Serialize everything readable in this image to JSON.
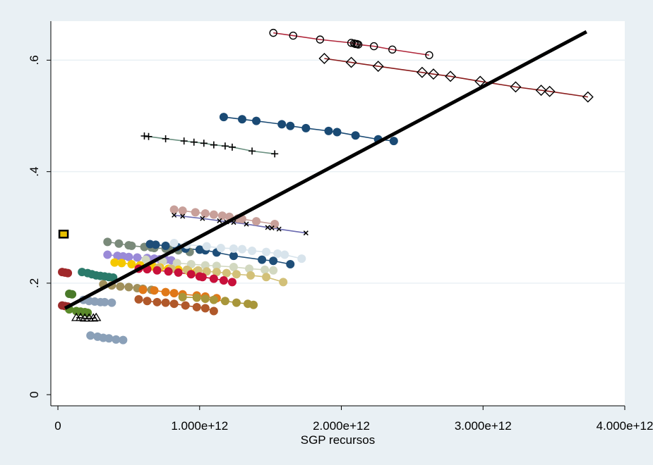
{
  "chart_data": {
    "type": "scatter",
    "title": "",
    "xlabel": "SGP recursos",
    "ylabel": "",
    "xlim": [
      -50000000000.0,
      4000000000000.0
    ],
    "ylim": [
      -0.02,
      0.67
    ],
    "x_ticks": [
      {
        "value": 0,
        "label": "0"
      },
      {
        "value": 1000000000000.0,
        "label": "1.000e+12"
      },
      {
        "value": 2000000000000.0,
        "label": "2.000e+12"
      },
      {
        "value": 3000000000000.0,
        "label": "3.000e+12"
      },
      {
        "value": 4000000000000.0,
        "label": "4.000e+12"
      }
    ],
    "y_ticks": [
      {
        "value": 0,
        "label": "0"
      },
      {
        "value": 0.2,
        "label": ".2"
      },
      {
        "value": 0.4,
        "label": ".4"
      },
      {
        "value": 0.6,
        "label": ".6"
      }
    ],
    "grid": true,
    "background": "#ffffff",
    "outer_background": "#e9f0f4",
    "fit_line": {
      "x": [
        50000000000.0,
        3730000000000.0
      ],
      "y": [
        0.155,
        0.651
      ],
      "color": "#000000"
    },
    "series": [
      {
        "marker": "hollow-circle",
        "color": "#b0263a",
        "x": [
          1520000000000.0,
          1660000000000.0,
          1850000000000.0,
          2070000000000.0,
          2090000000000.0,
          2100000000000.0,
          2110000000000.0,
          2120000000000.0,
          2230000000000.0,
          2360000000000.0,
          2620000000000.0
        ],
        "y": [
          0.649,
          0.644,
          0.637,
          0.631,
          0.63,
          0.629,
          0.629,
          0.628,
          0.625,
          0.619,
          0.609
        ]
      },
      {
        "marker": "hollow-diamond",
        "color": "#8a1c1c",
        "x": [
          1880000000000.0,
          2070000000000.0,
          2260000000000.0,
          2570000000000.0,
          2650000000000.0,
          2770000000000.0,
          2980000000000.0,
          3230000000000.0,
          3410000000000.0,
          3470000000000.0,
          3740000000000.0
        ],
        "y": [
          0.603,
          0.596,
          0.589,
          0.578,
          0.575,
          0.571,
          0.562,
          0.552,
          0.546,
          0.544,
          0.534
        ]
      },
      {
        "marker": "solid-circle",
        "color": "#1a4a74",
        "x": [
          1170000000000.0,
          1300000000000.0,
          1400000000000.0,
          1580000000000.0,
          1640000000000.0,
          1750000000000.0,
          1910000000000.0,
          1970000000000.0,
          2100000000000.0,
          2260000000000.0,
          2370000000000.0
        ],
        "y": [
          0.498,
          0.494,
          0.491,
          0.485,
          0.482,
          0.478,
          0.473,
          0.471,
          0.465,
          0.458,
          0.455
        ]
      },
      {
        "marker": "plus",
        "color": "#6a9080",
        "x": [
          610000000000.0,
          640000000000.0,
          760000000000.0,
          890000000000.0,
          960000000000.0,
          1030000000000.0,
          1100000000000.0,
          1180000000000.0,
          1230000000000.0,
          1370000000000.0,
          1530000000000.0
        ],
        "y": [
          0.464,
          0.463,
          0.459,
          0.455,
          0.453,
          0.451,
          0.448,
          0.446,
          0.444,
          0.437,
          0.432
        ]
      },
      {
        "marker": "solid-circle",
        "color": "#c8a09a",
        "x": [
          820000000000.0,
          880000000000.0,
          970000000000.0,
          1040000000000.0,
          1100000000000.0,
          1160000000000.0,
          1210000000000.0,
          1270000000000.0,
          1300000000000.0,
          1400000000000.0,
          1530000000000.0
        ],
        "y": [
          0.332,
          0.33,
          0.327,
          0.325,
          0.323,
          0.321,
          0.319,
          0.316,
          0.315,
          0.311,
          0.306
        ]
      },
      {
        "marker": "x",
        "color": "#6a6ab0",
        "x": [
          820000000000.0,
          880000000000.0,
          1020000000000.0,
          1140000000000.0,
          1190000000000.0,
          1240000000000.0,
          1330000000000.0,
          1480000000000.0,
          1510000000000.0,
          1560000000000.0,
          1750000000000.0
        ],
        "y": [
          0.322,
          0.32,
          0.316,
          0.312,
          0.31,
          0.309,
          0.306,
          0.3,
          0.299,
          0.297,
          0.29
        ]
      },
      {
        "marker": "solid-circle",
        "color": "#7a8a7a",
        "x": [
          350000000000.0,
          430000000000.0,
          500000000000.0,
          520000000000.0,
          610000000000.0,
          660000000000.0,
          680000000000.0,
          760000000000.0,
          800000000000.0,
          850000000000.0,
          930000000000.0
        ],
        "y": [
          0.274,
          0.271,
          0.268,
          0.267,
          0.265,
          0.264,
          0.263,
          0.262,
          0.26,
          0.259,
          0.256
        ]
      },
      {
        "marker": "solid-circle",
        "color": "#1e4e78",
        "x": [
          650000000000.0,
          690000000000.0,
          760000000000.0,
          840000000000.0,
          900000000000.0,
          1000000000000.0,
          1040000000000.0,
          1120000000000.0,
          1240000000000.0,
          1440000000000.0,
          1520000000000.0,
          1640000000000.0
        ],
        "y": [
          0.27,
          0.269,
          0.267,
          0.265,
          0.262,
          0.26,
          0.259,
          0.255,
          0.249,
          0.242,
          0.24,
          0.234
        ]
      },
      {
        "marker": "solid-circle",
        "color": "#d8e4ec",
        "x": [
          820000000000.0,
          910000000000.0,
          1050000000000.0,
          1150000000000.0,
          1240000000000.0,
          1300000000000.0,
          1370000000000.0,
          1470000000000.0,
          1550000000000.0,
          1600000000000.0,
          1720000000000.0
        ],
        "y": [
          0.272,
          0.269,
          0.266,
          0.263,
          0.262,
          0.261,
          0.258,
          0.256,
          0.253,
          0.251,
          0.244
        ]
      },
      {
        "marker": "solid-circle",
        "color": "#9a8ad8",
        "x": [
          350000000000.0,
          420000000000.0,
          460000000000.0,
          500000000000.0,
          560000000000.0,
          630000000000.0,
          680000000000.0,
          720000000000.0,
          760000000000.0,
          800000000000.0
        ],
        "y": [
          0.251,
          0.249,
          0.248,
          0.247,
          0.246,
          0.245,
          0.244,
          0.243,
          0.242,
          0.241
        ]
      },
      {
        "marker": "solid-circle",
        "color": "#d2d8c0",
        "x": [
          620000000000.0,
          740000000000.0,
          840000000000.0,
          940000000000.0,
          1040000000000.0,
          1120000000000.0,
          1240000000000.0,
          1350000000000.0,
          1460000000000.0,
          1520000000000.0
        ],
        "y": [
          0.242,
          0.239,
          0.236,
          0.234,
          0.232,
          0.231,
          0.229,
          0.226,
          0.224,
          0.223
        ]
      },
      {
        "marker": "solid-circle",
        "color": "#f5c800",
        "x": [
          400000000000.0,
          450000000000.0,
          520000000000.0,
          580000000000.0,
          670000000000.0,
          720000000000.0,
          780000000000.0,
          850000000000.0,
          920000000000.0,
          980000000000.0
        ],
        "y": [
          0.237,
          0.236,
          0.234,
          0.232,
          0.23,
          0.228,
          0.226,
          0.224,
          0.222,
          0.221
        ]
      },
      {
        "marker": "solid-circle",
        "color": "#d2c078",
        "x": [
          710000000000.0,
          800000000000.0,
          910000000000.0,
          990000000000.0,
          1050000000000.0,
          1120000000000.0,
          1190000000000.0,
          1260000000000.0,
          1360000000000.0,
          1470000000000.0,
          1590000000000.0
        ],
        "y": [
          0.228,
          0.226,
          0.224,
          0.223,
          0.221,
          0.22,
          0.218,
          0.216,
          0.214,
          0.211,
          0.202
        ]
      },
      {
        "marker": "solid-circle",
        "color": "#c8103a",
        "x": [
          570000000000.0,
          630000000000.0,
          700000000000.0,
          780000000000.0,
          850000000000.0,
          940000000000.0,
          1000000000000.0,
          1020000000000.0,
          1100000000000.0,
          1170000000000.0,
          1230000000000.0
        ],
        "y": [
          0.226,
          0.225,
          0.223,
          0.221,
          0.219,
          0.216,
          0.212,
          0.211,
          0.208,
          0.205,
          0.202
        ]
      },
      {
        "marker": "solid-circle",
        "color": "#a0282a",
        "x": [
          30000000000.0,
          50000000000.0,
          70000000000.0
        ],
        "y": [
          0.22,
          0.219,
          0.218
        ]
      },
      {
        "marker": "solid-circle",
        "color": "#2a7a6a",
        "x": [
          170000000000.0,
          210000000000.0,
          240000000000.0,
          270000000000.0,
          300000000000.0,
          330000000000.0,
          360000000000.0,
          390000000000.0
        ],
        "y": [
          0.22,
          0.218,
          0.216,
          0.214,
          0.213,
          0.212,
          0.211,
          0.21
        ]
      },
      {
        "marker": "solid-circle",
        "color": "#a0905c",
        "x": [
          320000000000.0,
          380000000000.0,
          440000000000.0,
          500000000000.0,
          560000000000.0,
          600000000000.0,
          660000000000.0
        ],
        "y": [
          0.198,
          0.196,
          0.194,
          0.193,
          0.191,
          0.19,
          0.188
        ]
      },
      {
        "marker": "solid-circle",
        "color": "#e07818",
        "x": [
          600000000000.0,
          680000000000.0,
          760000000000.0,
          820000000000.0,
          880000000000.0,
          980000000000.0,
          1040000000000.0,
          1120000000000.0
        ],
        "y": [
          0.188,
          0.187,
          0.184,
          0.182,
          0.18,
          0.178,
          0.176,
          0.173
        ]
      },
      {
        "marker": "solid-circle",
        "color": "#a8963a",
        "x": [
          880000000000.0,
          980000000000.0,
          1040000000000.0,
          1100000000000.0,
          1180000000000.0,
          1260000000000.0,
          1340000000000.0,
          1380000000000.0
        ],
        "y": [
          0.175,
          0.174,
          0.172,
          0.17,
          0.168,
          0.165,
          0.163,
          0.161
        ]
      },
      {
        "marker": "solid-circle",
        "color": "#b0582a",
        "x": [
          570000000000.0,
          630000000000.0,
          700000000000.0,
          760000000000.0,
          820000000000.0,
          900000000000.0,
          980000000000.0,
          1040000000000.0,
          1100000000000.0
        ],
        "y": [
          0.171,
          0.168,
          0.166,
          0.165,
          0.163,
          0.16,
          0.157,
          0.155,
          0.15
        ]
      },
      {
        "marker": "solid-circle",
        "color": "#4a7a2a",
        "x": [
          80000000000.0,
          100000000000.0
        ],
        "y": [
          0.181,
          0.18
        ]
      },
      {
        "marker": "solid-circle",
        "color": "#8ca0b8",
        "x": [
          180000000000.0,
          220000000000.0,
          260000000000.0,
          300000000000.0,
          330000000000.0,
          380000000000.0
        ],
        "y": [
          0.17,
          0.168,
          0.167,
          0.166,
          0.166,
          0.165
        ]
      },
      {
        "marker": "solid-circle",
        "color": "#9a2a2a",
        "x": [
          30000000000.0,
          50000000000.0,
          70000000000.0
        ],
        "y": [
          0.16,
          0.159,
          0.158
        ]
      },
      {
        "marker": "solid-circle",
        "color": "#5a8a2a",
        "x": [
          80000000000.0,
          130000000000.0,
          160000000000.0,
          190000000000.0,
          210000000000.0
        ],
        "y": [
          0.153,
          0.15,
          0.149,
          0.148,
          0.147
        ]
      },
      {
        "marker": "hollow-triangle",
        "color": "#000000",
        "x": [
          130000000000.0,
          160000000000.0,
          190000000000.0,
          220000000000.0,
          250000000000.0,
          270000000000.0
        ],
        "y": [
          0.138,
          0.138,
          0.137,
          0.137,
          0.137,
          0.138
        ]
      },
      {
        "marker": "solid-circle",
        "color": "#8aa0b8",
        "x": [
          230000000000.0,
          280000000000.0,
          320000000000.0,
          360000000000.0,
          410000000000.0,
          460000000000.0
        ],
        "y": [
          0.106,
          0.104,
          0.102,
          0.101,
          0.099,
          0.098
        ]
      },
      {
        "marker": "hollow-square",
        "color": "#000000",
        "fill": "#e8c000",
        "x": [
          40000000000.0
        ],
        "y": [
          0.288
        ]
      }
    ]
  }
}
